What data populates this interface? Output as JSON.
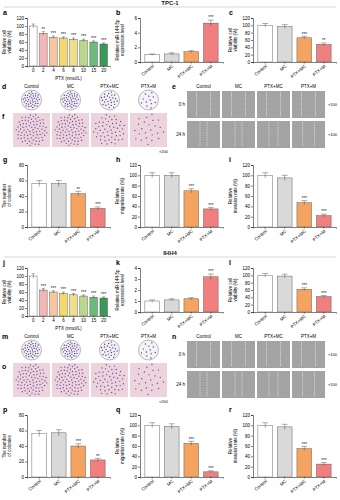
{
  "sections": [
    {
      "title": "TPC-1"
    },
    {
      "title": "IHH4"
    }
  ],
  "chart_data": [
    {
      "type": "bar",
      "panel": "a",
      "x_label": "PTX (nmol/L)",
      "y_label": "Relative cell viability (%)",
      "categories": [
        "0",
        "2",
        "4",
        "6",
        "8",
        "10",
        "15",
        "20"
      ],
      "values": [
        100,
        82,
        72,
        70,
        67,
        64,
        60,
        55
      ],
      "errors": [
        5,
        4,
        3,
        3,
        3,
        3,
        3,
        3
      ],
      "significance": [
        null,
        "**",
        "***",
        "***",
        "***",
        "***",
        "***",
        "***"
      ],
      "colors": [
        "#ffffff",
        "#f4b6b6",
        "#f7c59f",
        "#f5d76e",
        "#eee08a",
        "#b8d98b",
        "#6dbb7a",
        "#3a9a5a"
      ],
      "ylim": [
        0,
        120
      ],
      "yticks": [
        0,
        20,
        40,
        60,
        80,
        100,
        120
      ]
    },
    {
      "type": "bar",
      "panel": "b",
      "y_label": "Relative miR-144-5p expression level",
      "categories": [
        "Control",
        "MC",
        "PTX+MC",
        "PTX+M"
      ],
      "values": [
        1,
        1.1,
        1.4,
        5.3
      ],
      "errors": [
        0.1,
        0.15,
        0.15,
        0.4
      ],
      "significance": [
        null,
        null,
        null,
        "***"
      ],
      "colors": [
        "#ffffff",
        "#d9d9d9",
        "#f4a460",
        "#f08080"
      ],
      "ylim": [
        0,
        6
      ],
      "yticks": [
        0,
        2,
        4,
        6
      ]
    },
    {
      "type": "bar",
      "panel": "c",
      "y_label": "Relative cell viability (%)",
      "categories": [
        "Control",
        "MC",
        "PTX+MC",
        "PTX+M"
      ],
      "values": [
        100,
        97,
        66,
        48
      ],
      "errors": [
        5,
        5,
        4,
        4
      ],
      "significance": [
        null,
        null,
        "***",
        "**"
      ],
      "colors": [
        "#ffffff",
        "#d9d9d9",
        "#f4a460",
        "#f08080"
      ],
      "ylim": [
        0,
        120
      ],
      "yticks": [
        0,
        20,
        40,
        60,
        80,
        100,
        120
      ]
    },
    {
      "type": "bar",
      "panel": "g",
      "y_label": "The number of colonies",
      "categories": [
        "Control",
        "MC",
        "PTX+MC",
        "PTX+M"
      ],
      "values": [
        56,
        56,
        43,
        24
      ],
      "errors": [
        4,
        4,
        3,
        2
      ],
      "significance": [
        null,
        null,
        "**",
        "***"
      ],
      "colors": [
        "#ffffff",
        "#d9d9d9",
        "#f4a460",
        "#f08080"
      ],
      "ylim": [
        0,
        80
      ],
      "yticks": [
        0,
        20,
        40,
        60,
        80
      ]
    },
    {
      "type": "bar",
      "panel": "h",
      "y_label": "Relative migration rate (%)",
      "categories": [
        "Control",
        "MC",
        "PTX+MC",
        "PTX+M"
      ],
      "values": [
        100,
        100,
        70,
        35
      ],
      "errors": [
        5,
        5,
        4,
        3
      ],
      "significance": [
        null,
        null,
        "***",
        "***"
      ],
      "colors": [
        "#ffffff",
        "#d9d9d9",
        "#f4a460",
        "#f08080"
      ],
      "ylim": [
        0,
        120
      ],
      "yticks": [
        0,
        20,
        40,
        60,
        80,
        100,
        120
      ]
    },
    {
      "type": "bar",
      "panel": "i",
      "y_label": "Relative invasion rate (%)",
      "categories": [
        "Control",
        "MC",
        "PTX+MC",
        "PTX+M"
      ],
      "values": [
        100,
        95,
        47,
        22
      ],
      "errors": [
        5,
        5,
        4,
        3
      ],
      "significance": [
        null,
        null,
        "***",
        "***"
      ],
      "colors": [
        "#ffffff",
        "#d9d9d9",
        "#f4a460",
        "#f08080"
      ],
      "ylim": [
        0,
        120
      ],
      "yticks": [
        0,
        20,
        40,
        60,
        80,
        100,
        120
      ]
    },
    {
      "type": "bar",
      "panel": "j",
      "x_label": "PTX (nmol/L)",
      "y_label": "Relative cell viability (%)",
      "categories": [
        "0",
        "2",
        "4",
        "6",
        "8",
        "10",
        "15",
        "20"
      ],
      "values": [
        100,
        65,
        60,
        57,
        53,
        50,
        47,
        45
      ],
      "errors": [
        6,
        4,
        3,
        3,
        3,
        3,
        3,
        3
      ],
      "significance": [
        null,
        "***",
        "***",
        "***",
        "***",
        "***",
        "***",
        "***"
      ],
      "colors": [
        "#ffffff",
        "#f4b6b6",
        "#f7c59f",
        "#f5d76e",
        "#eee08a",
        "#b8d98b",
        "#6dbb7a",
        "#3a9a5a"
      ],
      "ylim": [
        0,
        120
      ],
      "yticks": [
        0,
        20,
        40,
        60,
        80,
        100,
        120
      ]
    },
    {
      "type": "bar",
      "panel": "k",
      "y_label": "Relative miR-144-5p expression level",
      "categories": [
        "Control",
        "MC",
        "PTX+MC",
        "PTX+M"
      ],
      "values": [
        1,
        1.1,
        1.2,
        3.2
      ],
      "errors": [
        0.1,
        0.1,
        0.1,
        0.25
      ],
      "significance": [
        null,
        null,
        null,
        "***"
      ],
      "colors": [
        "#ffffff",
        "#d9d9d9",
        "#f4a460",
        "#f08080"
      ],
      "ylim": [
        0,
        4
      ],
      "yticks": [
        0,
        1,
        2,
        3,
        4
      ]
    },
    {
      "type": "bar",
      "panel": "l",
      "y_label": "Relative cell viability (%)",
      "categories": [
        "Control",
        "MC",
        "PTX+MC",
        "PTX+M"
      ],
      "values": [
        100,
        98,
        62,
        42
      ],
      "errors": [
        5,
        5,
        4,
        3
      ],
      "significance": [
        null,
        null,
        "***",
        "***"
      ],
      "colors": [
        "#ffffff",
        "#d9d9d9",
        "#f4a460",
        "#f08080"
      ],
      "ylim": [
        0,
        120
      ],
      "yticks": [
        0,
        20,
        40,
        60,
        80,
        100,
        120
      ]
    },
    {
      "type": "bar",
      "panel": "p",
      "y_label": "The number of colonies",
      "categories": [
        "Control",
        "MC",
        "PTX+MC",
        "PTX+M"
      ],
      "values": [
        56,
        57,
        40,
        22
      ],
      "errors": [
        4,
        4,
        3,
        2
      ],
      "significance": [
        null,
        null,
        "***",
        "**"
      ],
      "colors": [
        "#ffffff",
        "#d9d9d9",
        "#f4a460",
        "#f08080"
      ],
      "ylim": [
        0,
        80
      ],
      "yticks": [
        0,
        20,
        40,
        60,
        80
      ]
    },
    {
      "type": "bar",
      "panel": "q",
      "y_label": "Relative migration rate (%)",
      "categories": [
        "Control",
        "MC",
        "PTX+MC",
        "PTX+M"
      ],
      "values": [
        100,
        98,
        65,
        10
      ],
      "errors": [
        5,
        5,
        4,
        2
      ],
      "significance": [
        null,
        null,
        "***",
        "***"
      ],
      "colors": [
        "#ffffff",
        "#d9d9d9",
        "#f4a460",
        "#f08080"
      ],
      "ylim": [
        0,
        120
      ],
      "yticks": [
        0,
        20,
        40,
        60,
        80,
        100,
        120
      ]
    },
    {
      "type": "bar",
      "panel": "r",
      "y_label": "Relative invasion rate (%)",
      "categories": [
        "Control",
        "MC",
        "PTX+MC",
        "PTX+M"
      ],
      "values": [
        100,
        97,
        55,
        25
      ],
      "errors": [
        5,
        5,
        4,
        3
      ],
      "significance": [
        null,
        null,
        "***",
        "***"
      ],
      "colors": [
        "#ffffff",
        "#d9d9d9",
        "#f4a460",
        "#f08080"
      ],
      "ylim": [
        0,
        120
      ],
      "yticks": [
        0,
        20,
        40,
        60,
        80,
        100,
        120
      ]
    }
  ],
  "image_panels": [
    {
      "panel": "d",
      "labels": [
        "Control",
        "MC",
        "PTX+MC",
        "PTX+M"
      ]
    },
    {
      "panel": "e",
      "labels": [
        "Control",
        "MC",
        "PTX+MC",
        "PTX+M"
      ],
      "rows": [
        "0 h",
        "24 h"
      ],
      "magnification": "×100"
    },
    {
      "panel": "f",
      "magnification": "×200"
    },
    {
      "panel": "m",
      "labels": [
        "Control",
        "MC",
        "PTX+MC",
        "PTX+M"
      ]
    },
    {
      "panel": "n",
      "labels": [
        "Control",
        "MC",
        "PTX+MC",
        "PTX+M"
      ],
      "rows": [
        "0 h",
        "24 h"
      ],
      "magnification": "×100"
    },
    {
      "panel": "o",
      "magnification": "×200"
    }
  ]
}
